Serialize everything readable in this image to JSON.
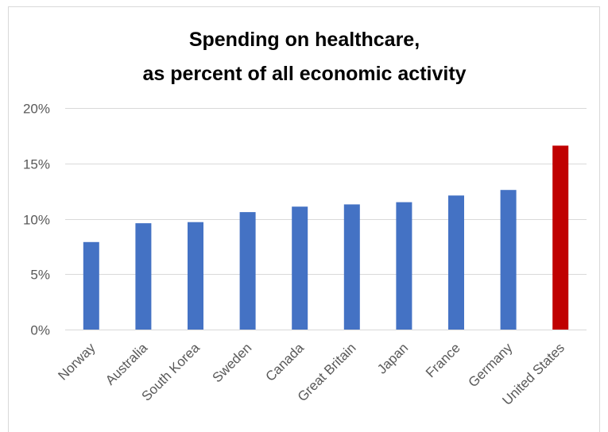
{
  "chart_data": {
    "type": "bar",
    "title": [
      "Spending on healthcare,",
      "as percent of all economic activity"
    ],
    "xlabel": "",
    "ylabel": "",
    "categories": [
      "Norway",
      "Australia",
      "South Korea",
      "Sweden",
      "Canada",
      "Great Britain",
      "Japan",
      "France",
      "Germany",
      "United States"
    ],
    "values": [
      7.9,
      9.6,
      9.7,
      10.6,
      11.1,
      11.3,
      11.5,
      12.1,
      12.6,
      16.6
    ],
    "ylim": [
      0,
      20
    ],
    "yticks": [
      0,
      5,
      10,
      15,
      20
    ],
    "ytick_labels": [
      "0%",
      "5%",
      "10%",
      "15%",
      "20%"
    ],
    "grid": true,
    "legend": "none",
    "colors": {
      "default_bar": "#4472c4",
      "highlight_bar": "#c00000",
      "highlight_category": "United States",
      "gridline": "#d9d9d9",
      "tick_text": "#595959"
    }
  }
}
